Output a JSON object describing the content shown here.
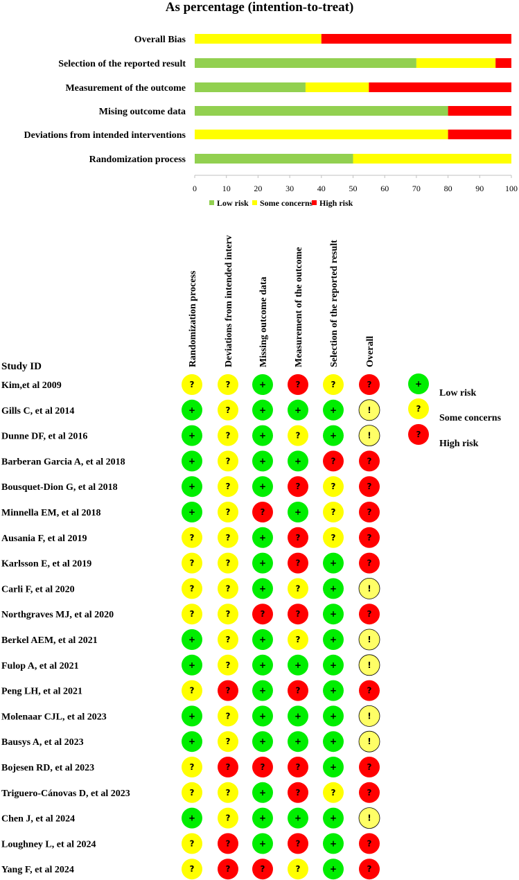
{
  "chart_data": [
    {
      "type": "bar",
      "stacked": true,
      "orientation": "horizontal",
      "title": "As percentage (intention-to-treat)",
      "categories": [
        "Overall Bias",
        "Selection of the reported result",
        "Measurement of the outcome",
        "Mising outcome data",
        "Deviations from intended interventions",
        "Randomization process"
      ],
      "series": [
        {
          "name": "Low risk",
          "color": "#92d050",
          "values": [
            0,
            70,
            35,
            80,
            0,
            50
          ]
        },
        {
          "name": "Some concerns",
          "color": "#ffff00",
          "values": [
            40,
            25,
            20,
            0,
            80,
            50
          ]
        },
        {
          "name": "High risk",
          "color": "#ff0000",
          "values": [
            60,
            5,
            45,
            20,
            20,
            0
          ]
        }
      ],
      "xlim": [
        0,
        100
      ],
      "xticks": [
        "0",
        "10",
        "20",
        "30",
        "40",
        "50",
        "60",
        "70",
        "80",
        "90",
        "100"
      ],
      "legend_position": "bottom",
      "grid": false
    },
    {
      "type": "table",
      "row_header": "Study ID",
      "columns": [
        "Randomization process",
        "Deviations from intended interv",
        "Missing outcome data",
        "Measurement of the outcome",
        "Selection of the reported result",
        "Overall"
      ],
      "rows": [
        {
          "study": "Kim,et al 2009",
          "ratings": [
            "S",
            "S",
            "L",
            "H",
            "S",
            "H"
          ]
        },
        {
          "study": "Gills C, et al 2014",
          "ratings": [
            "L",
            "S",
            "L",
            "L",
            "L",
            "O"
          ]
        },
        {
          "study": "Dunne DF, et al 2016",
          "ratings": [
            "L",
            "S",
            "L",
            "S",
            "L",
            "O"
          ]
        },
        {
          "study": "Barberan Garcia A, et al 2018",
          "ratings": [
            "L",
            "S",
            "L",
            "L",
            "H",
            "H"
          ]
        },
        {
          "study": "Bousquet-Dion G, et al 2018",
          "ratings": [
            "L",
            "S",
            "L",
            "H",
            "S",
            "H"
          ]
        },
        {
          "study": "Minnella EM, et al 2018",
          "ratings": [
            "L",
            "S",
            "H",
            "L",
            "S",
            "H"
          ]
        },
        {
          "study": "Ausania F, et al 2019",
          "ratings": [
            "S",
            "S",
            "L",
            "H",
            "S",
            "H"
          ]
        },
        {
          "study": "Karlsson E, et al 2019",
          "ratings": [
            "S",
            "S",
            "L",
            "H",
            "L",
            "H"
          ]
        },
        {
          "study": "Carli F, et al 2020",
          "ratings": [
            "S",
            "S",
            "L",
            "S",
            "L",
            "O"
          ]
        },
        {
          "study": "Northgraves MJ, et al 2020",
          "ratings": [
            "S",
            "S",
            "H",
            "H",
            "L",
            "H"
          ]
        },
        {
          "study": "Berkel AEM, et al 2021",
          "ratings": [
            "L",
            "S",
            "L",
            "S",
            "L",
            "O"
          ]
        },
        {
          "study": "Fulop A, et al 2021",
          "ratings": [
            "L",
            "S",
            "L",
            "L",
            "L",
            "O"
          ]
        },
        {
          "study": "Peng LH, et al 2021",
          "ratings": [
            "S",
            "H",
            "L",
            "H",
            "L",
            "H"
          ]
        },
        {
          "study": "Molenaar CJL, et al 2023",
          "ratings": [
            "L",
            "S",
            "L",
            "L",
            "L",
            "O"
          ]
        },
        {
          "study": "Bausys A, et al 2023",
          "ratings": [
            "L",
            "S",
            "L",
            "L",
            "L",
            "O"
          ]
        },
        {
          "study": "Bojesen RD, et al 2023",
          "ratings": [
            "S",
            "H",
            "H",
            "H",
            "L",
            "H"
          ]
        },
        {
          "study": "Triguero-Cánovas D, et al 2023",
          "ratings": [
            "S",
            "S",
            "L",
            "H",
            "S",
            "H"
          ]
        },
        {
          "study": "Chen J, et al 2024",
          "ratings": [
            "L",
            "S",
            "L",
            "L",
            "L",
            "O"
          ]
        },
        {
          "study": "Loughney L, et al 2024",
          "ratings": [
            "S",
            "H",
            "L",
            "H",
            "L",
            "H"
          ]
        },
        {
          "study": "Yang F, et al 2024",
          "ratings": [
            "S",
            "H",
            "H",
            "S",
            "L",
            "H"
          ]
        }
      ],
      "symbols": {
        "L": {
          "glyph": "+",
          "fill": "#00ee00"
        },
        "S": {
          "glyph": "?",
          "fill": "#ffff00"
        },
        "H": {
          "glyph": "?",
          "fill": "#ff0000"
        },
        "O": {
          "glyph": "!",
          "fill": "#ffff66"
        }
      },
      "legend": [
        {
          "key": "L",
          "label": "Low risk"
        },
        {
          "key": "S",
          "label": "Some concerns"
        },
        {
          "key": "H",
          "label": "High risk"
        }
      ]
    }
  ]
}
